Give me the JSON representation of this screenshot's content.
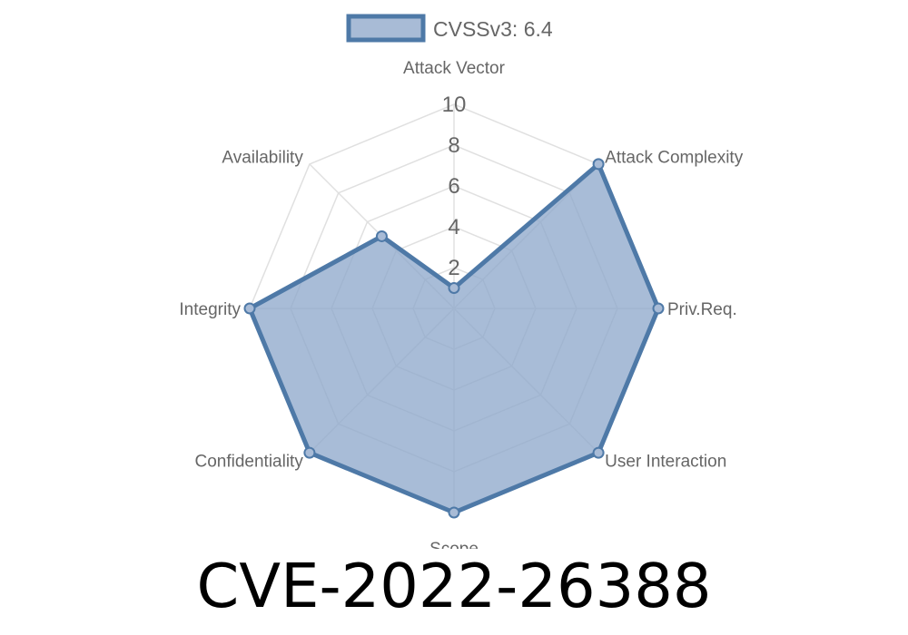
{
  "chart_data": {
    "type": "radar",
    "axes": [
      "Attack Vector",
      "Attack Complexity",
      "Priv.Req.",
      "User Interaction",
      "Scope",
      "Confidentiality",
      "Integrity",
      "Availability"
    ],
    "series": [
      {
        "name": "CVSSv3: 6.4",
        "values": [
          1.0,
          10.0,
          10.0,
          10.0,
          10.0,
          10.0,
          10.0,
          5.0
        ]
      }
    ],
    "rlim": [
      0,
      10
    ],
    "ticks": [
      "2",
      "4",
      "6",
      "8",
      "10"
    ],
    "legend_position": "top",
    "colors": {
      "fill": "#8fa9cc",
      "stroke": "#4e79a7",
      "grid": "#e0e0e0",
      "text": "#666666"
    }
  },
  "title": "CVE-2022-26388"
}
